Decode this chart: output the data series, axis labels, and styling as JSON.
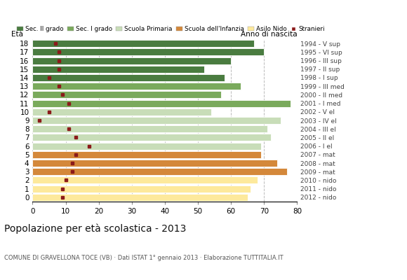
{
  "ages": [
    0,
    1,
    2,
    3,
    4,
    5,
    6,
    7,
    8,
    9,
    10,
    11,
    12,
    13,
    14,
    15,
    16,
    17,
    18
  ],
  "bar_values": [
    65,
    66,
    68,
    77,
    74,
    69,
    69,
    72,
    71,
    75,
    54,
    78,
    57,
    63,
    58,
    52,
    60,
    70,
    67
  ],
  "stranieri": [
    9,
    9,
    10,
    12,
    12,
    13,
    17,
    13,
    11,
    2,
    5,
    11,
    9,
    8,
    5,
    8,
    8,
    8,
    7
  ],
  "bar_colors": [
    "#fde99c",
    "#fde99c",
    "#fde99c",
    "#d4883a",
    "#d4883a",
    "#d4883a",
    "#c8ddb8",
    "#c8ddb8",
    "#c8ddb8",
    "#c8ddb8",
    "#c8ddb8",
    "#7aaa5c",
    "#7aaa5c",
    "#7aaa5c",
    "#4a7c40",
    "#4a7c40",
    "#4a7c40",
    "#4a7c40",
    "#4a7c40"
  ],
  "right_labels": [
    "2012 - nido",
    "2011 - nido",
    "2010 - nido",
    "2009 - mat",
    "2008 - mat",
    "2007 - mat",
    "2006 - I el",
    "2005 - II el",
    "2004 - III el",
    "2003 - IV el",
    "2002 - V el",
    "2001 - I med",
    "2000 - II med",
    "1999 - III med",
    "1998 - I sup",
    "1997 - II sup",
    "1996 - III sup",
    "1995 - VI sup",
    "1994 - V sup"
  ],
  "legend_labels": [
    "Sec. II grado",
    "Sec. I grado",
    "Scuola Primaria",
    "Scuola dell'Infanzia",
    "Asilo Nido",
    "Stranieri"
  ],
  "legend_colors": [
    "#4a7c40",
    "#7aaa5c",
    "#c8ddb8",
    "#d4883a",
    "#fde99c",
    "#8b1a1a"
  ],
  "title": "Popolazione per età scolastica - 2013",
  "subtitle": "COMUNE DI GRAVELLONA TOCE (VB) · Dati ISTAT 1° gennaio 2013 · Elaborazione TUTTITALIA.IT",
  "eta_label": "Età",
  "anno_label": "Anno di nascita",
  "xlim": [
    0,
    80
  ],
  "xticks": [
    0,
    10,
    20,
    30,
    40,
    50,
    60,
    70,
    80
  ],
  "stranieri_color": "#8b1a1a",
  "bar_height": 0.82,
  "dpi": 100,
  "figsize": [
    5.8,
    4.0
  ],
  "bg_color": "#ffffff"
}
